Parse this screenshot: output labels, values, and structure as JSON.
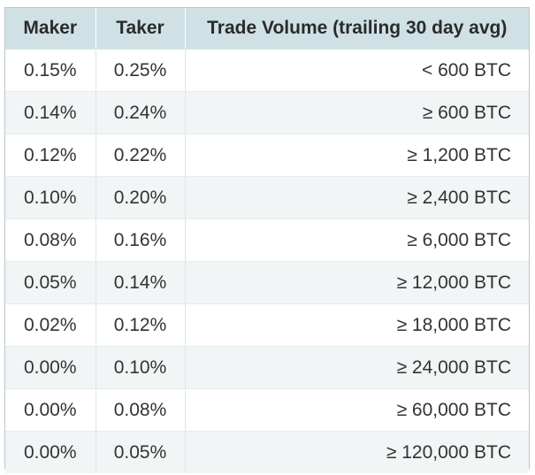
{
  "table": {
    "headers": {
      "maker": "Maker",
      "taker": "Taker",
      "volume": "Trade Volume (trailing 30 day avg)"
    },
    "rows": [
      {
        "maker": "0.15%",
        "taker": "0.25%",
        "volume": "< 600 BTC"
      },
      {
        "maker": "0.14%",
        "taker": "0.24%",
        "volume": "≥ 600 BTC"
      },
      {
        "maker": "0.12%",
        "taker": "0.22%",
        "volume": "≥ 1,200 BTC"
      },
      {
        "maker": "0.10%",
        "taker": "0.20%",
        "volume": "≥ 2,400 BTC"
      },
      {
        "maker": "0.08%",
        "taker": "0.16%",
        "volume": "≥ 6,000 BTC"
      },
      {
        "maker": "0.05%",
        "taker": "0.14%",
        "volume": "≥ 12,000 BTC"
      },
      {
        "maker": "0.02%",
        "taker": "0.12%",
        "volume": "≥ 18,000 BTC"
      },
      {
        "maker": "0.00%",
        "taker": "0.10%",
        "volume": "≥ 24,000 BTC"
      },
      {
        "maker": "0.00%",
        "taker": "0.08%",
        "volume": "≥ 60,000 BTC"
      },
      {
        "maker": "0.00%",
        "taker": "0.05%",
        "volume": "≥ 120,000 BTC"
      }
    ]
  },
  "colors": {
    "header_background": "#cfe1e5",
    "alt_row_background": "#f1f5f6",
    "border": "#b9c6cc"
  }
}
